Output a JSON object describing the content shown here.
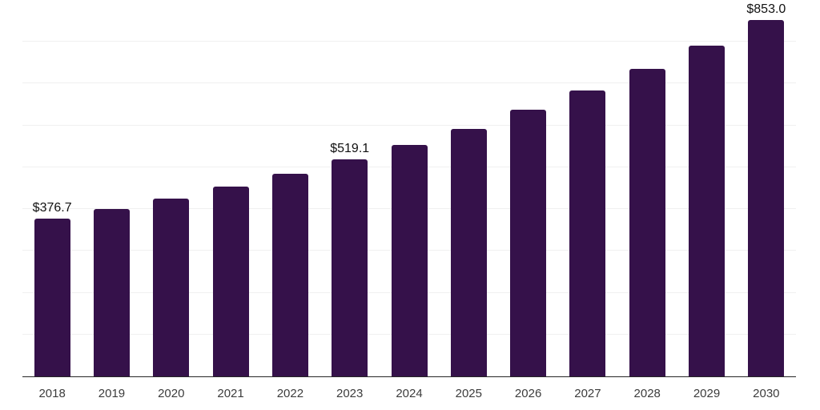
{
  "chart_data": {
    "type": "bar",
    "title": "",
    "xlabel": "",
    "ylabel": "",
    "categories": [
      "2018",
      "2019",
      "2020",
      "2021",
      "2022",
      "2023",
      "2024",
      "2025",
      "2026",
      "2027",
      "2028",
      "2029",
      "2030"
    ],
    "values": [
      376.7,
      400.5,
      425.5,
      453.5,
      484.5,
      519.1,
      553.5,
      591.5,
      637.5,
      683.5,
      735.5,
      791.0,
      853.0
    ],
    "value_labels": [
      "$376.7",
      "",
      "",
      "",
      "",
      "$519.1",
      "",
      "",
      "",
      "",
      "",
      "",
      "$853.0"
    ],
    "ylim": [
      0,
      900
    ],
    "grid_step": 100,
    "grid": "horizontal",
    "legend": "none",
    "colors": {
      "bar": "#35114A",
      "gridline": "#F0F0F0",
      "axis_line": "#262626",
      "value_label_text": "#111111",
      "tick_label_text": "#3C3C3C",
      "background": "#FFFFFF"
    }
  }
}
